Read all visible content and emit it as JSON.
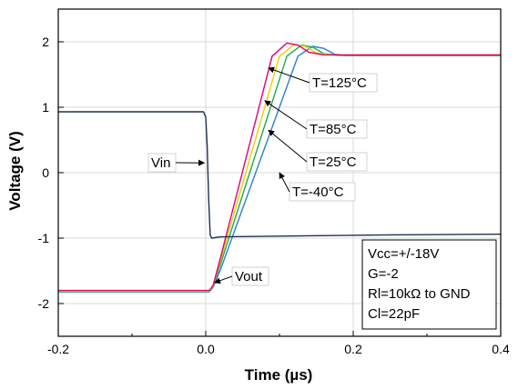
{
  "chart_data": {
    "type": "line",
    "xlabel": "Time (µs)",
    "ylabel": "Voltage (V)",
    "xlim": [
      -0.2,
      0.4
    ],
    "ylim": [
      -2.5,
      2.5
    ],
    "x_ticks": [
      -0.2,
      0.0,
      0.2,
      0.4
    ],
    "x_tick_labels": [
      "-0.2",
      "0.0",
      "0.2",
      "0.4"
    ],
    "y_ticks": [
      -2,
      -1,
      0,
      1,
      2
    ],
    "y_tick_labels": [
      "-2",
      "-1",
      "0",
      "1",
      "2"
    ],
    "grid": true,
    "series": [
      {
        "name": "Vin",
        "color": "#1f3050",
        "points": [
          [
            -0.2,
            0.93
          ],
          [
            -0.05,
            0.93
          ],
          [
            -0.003,
            0.93
          ],
          [
            0.0,
            0.85
          ],
          [
            0.002,
            0.4
          ],
          [
            0.004,
            -0.4
          ],
          [
            0.006,
            -0.95
          ],
          [
            0.008,
            -1.0
          ],
          [
            0.02,
            -0.98
          ],
          [
            0.1,
            -0.97
          ],
          [
            0.25,
            -0.95
          ],
          [
            0.4,
            -0.94
          ]
        ]
      },
      {
        "name": "T=125°C",
        "color": "#e0007a",
        "points": [
          [
            -0.2,
            -1.8
          ],
          [
            0.0,
            -1.8
          ],
          [
            0.005,
            -1.8
          ],
          [
            0.01,
            -1.72
          ],
          [
            0.02,
            -1.3
          ],
          [
            0.09,
            1.78
          ],
          [
            0.11,
            1.98
          ],
          [
            0.125,
            1.95
          ],
          [
            0.14,
            1.84
          ],
          [
            0.16,
            1.8
          ],
          [
            0.4,
            1.8
          ]
        ]
      },
      {
        "name": "T=85°C",
        "color": "#e6d200",
        "points": [
          [
            -0.2,
            -1.81
          ],
          [
            0.0,
            -1.81
          ],
          [
            0.005,
            -1.81
          ],
          [
            0.01,
            -1.73
          ],
          [
            0.02,
            -1.34
          ],
          [
            0.1,
            1.78
          ],
          [
            0.12,
            1.96
          ],
          [
            0.135,
            1.93
          ],
          [
            0.15,
            1.83
          ],
          [
            0.17,
            1.8
          ],
          [
            0.4,
            1.8
          ]
        ]
      },
      {
        "name": "T=25°C",
        "color": "#22a84a",
        "points": [
          [
            -0.2,
            -1.82
          ],
          [
            0.0,
            -1.82
          ],
          [
            0.005,
            -1.82
          ],
          [
            0.01,
            -1.74
          ],
          [
            0.02,
            -1.4
          ],
          [
            0.11,
            1.78
          ],
          [
            0.13,
            1.95
          ],
          [
            0.145,
            1.92
          ],
          [
            0.16,
            1.82
          ],
          [
            0.18,
            1.79
          ],
          [
            0.4,
            1.79
          ]
        ]
      },
      {
        "name": "T=-40°C",
        "color": "#2a7fd4",
        "points": [
          [
            -0.2,
            -1.82
          ],
          [
            0.0,
            -1.82
          ],
          [
            0.005,
            -1.82
          ],
          [
            0.01,
            -1.75
          ],
          [
            0.02,
            -1.48
          ],
          [
            0.125,
            1.78
          ],
          [
            0.145,
            1.93
          ],
          [
            0.16,
            1.9
          ],
          [
            0.175,
            1.81
          ],
          [
            0.19,
            1.79
          ],
          [
            0.4,
            1.79
          ]
        ]
      }
    ],
    "annotations": [
      {
        "label": "Vin",
        "target": [
          -0.002,
          0.15
        ]
      },
      {
        "label": "Vout",
        "target": [
          0.012,
          -1.68
        ]
      },
      {
        "label": "T=125°C",
        "target": [
          0.085,
          1.6
        ]
      },
      {
        "label": "T=85°C",
        "target": [
          0.08,
          1.1
        ]
      },
      {
        "label": "T=25°C",
        "target": [
          0.085,
          0.65
        ]
      },
      {
        "label": "T=-40°C",
        "target": [
          0.1,
          0.0
        ]
      }
    ],
    "spec_box": [
      "Vcc=+/-18V",
      "G=-2",
      "Rl=10kΩ to GND",
      "Cl=22pF"
    ]
  }
}
